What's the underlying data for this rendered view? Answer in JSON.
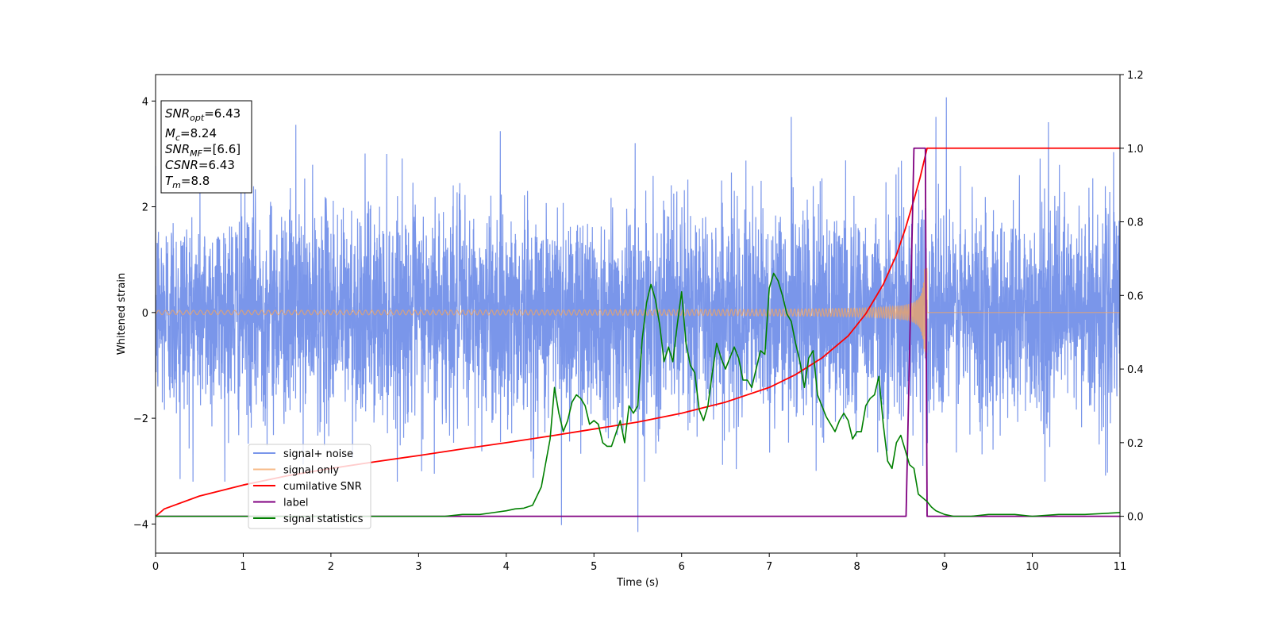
{
  "colors": {
    "signal_noise": "#4169e1",
    "signal_only": "#f4a460",
    "cumulative_snr": "#ff0000",
    "label": "#800080",
    "signal_statistics": "#008000"
  },
  "chart_data": {
    "type": "line",
    "xlabel": "Time (s)",
    "ylabel": "Whitened strain",
    "ylabel_right": "",
    "xlim": [
      0,
      11
    ],
    "ylim": [
      -4.55,
      4.5
    ],
    "ylim_right": [
      -0.1,
      1.2
    ],
    "xticks": [
      0,
      1,
      2,
      3,
      4,
      5,
      6,
      7,
      8,
      9,
      10,
      11
    ],
    "yticks": [
      -4,
      -2,
      0,
      2,
      4
    ],
    "yticks_right": [
      0.0,
      0.2,
      0.4,
      0.6,
      0.8,
      1.0,
      1.2
    ],
    "grid": false,
    "legend_position": "lower-left",
    "info_box": {
      "position": "top-left",
      "lines": [
        {
          "main": "SNR",
          "sub": "opt",
          "value": "=6.43"
        },
        {
          "main": "M",
          "sub": "c",
          "value": "=8.24"
        },
        {
          "main": "SNR",
          "sub": "MF",
          "value": "=[6.6]"
        },
        {
          "main": "CSNR",
          "sub": "",
          "value": "=6.43"
        },
        {
          "main": "T",
          "sub": "m",
          "value": "=8.8"
        }
      ]
    },
    "series": [
      {
        "name": "signal+ noise",
        "axis": "left",
        "kind": "noise",
        "std": 1.0,
        "envelope_min": -3.2,
        "envelope_max": 3.6,
        "extremes": [
          [
            8.9,
            3.7
          ],
          [
            9.02,
            4.07
          ],
          [
            4.63,
            -4.02
          ],
          [
            5.5,
            -4.15
          ],
          [
            1.6,
            3.55
          ],
          [
            7.25,
            3.7
          ],
          [
            0.28,
            -3.15
          ],
          [
            3.18,
            -3.05
          ]
        ]
      },
      {
        "name": "signal only",
        "axis": "left",
        "kind": "chirp",
        "merger_time": 8.8,
        "amplitude_start": 0.04,
        "amplitude_peak": 0.85,
        "post_merger": 0.0
      },
      {
        "name": "cumilative SNR",
        "axis": "right",
        "x": [
          0,
          0.1,
          0.5,
          1,
          1.5,
          2,
          2.5,
          3,
          3.5,
          4,
          4.5,
          5,
          5.5,
          6,
          6.5,
          7,
          7.3,
          7.6,
          7.9,
          8.1,
          8.3,
          8.45,
          8.55,
          8.65,
          8.72,
          8.78,
          8.8,
          11
        ],
        "y": [
          0.0,
          0.02,
          0.055,
          0.085,
          0.11,
          0.13,
          0.148,
          0.165,
          0.183,
          0.2,
          0.218,
          0.237,
          0.256,
          0.28,
          0.31,
          0.35,
          0.385,
          0.43,
          0.49,
          0.55,
          0.63,
          0.71,
          0.78,
          0.86,
          0.92,
          0.98,
          1.0,
          1.0
        ]
      },
      {
        "name": "label",
        "axis": "right",
        "x": [
          0,
          8.56,
          8.65,
          8.78,
          8.8,
          11
        ],
        "y": [
          0,
          0,
          1,
          1,
          0,
          0
        ]
      },
      {
        "name": "signal statistics",
        "axis": "right",
        "x": [
          0,
          0.5,
          1,
          1.5,
          2,
          2.5,
          3,
          3.3,
          3.5,
          3.7,
          3.85,
          4.0,
          4.1,
          4.2,
          4.3,
          4.4,
          4.5,
          4.55,
          4.6,
          4.65,
          4.7,
          4.75,
          4.8,
          4.85,
          4.9,
          4.95,
          5.0,
          5.05,
          5.1,
          5.15,
          5.2,
          5.3,
          5.35,
          5.4,
          5.45,
          5.5,
          5.55,
          5.6,
          5.65,
          5.7,
          5.75,
          5.8,
          5.85,
          5.9,
          5.95,
          6.0,
          6.05,
          6.1,
          6.15,
          6.2,
          6.25,
          6.3,
          6.35,
          6.4,
          6.45,
          6.5,
          6.55,
          6.6,
          6.65,
          6.7,
          6.75,
          6.8,
          6.85,
          6.9,
          6.95,
          7.0,
          7.05,
          7.1,
          7.15,
          7.2,
          7.25,
          7.3,
          7.35,
          7.4,
          7.45,
          7.5,
          7.55,
          7.6,
          7.65,
          7.7,
          7.75,
          7.8,
          7.85,
          7.9,
          7.95,
          8.0,
          8.05,
          8.1,
          8.15,
          8.2,
          8.25,
          8.3,
          8.35,
          8.4,
          8.45,
          8.5,
          8.55,
          8.6,
          8.65,
          8.7,
          8.75,
          8.8,
          8.85,
          8.9,
          8.95,
          9.0,
          9.1,
          9.2,
          9.3,
          9.5,
          9.8,
          10.0,
          10.3,
          10.6,
          11.0
        ],
        "y": [
          0.0,
          0.0,
          0.0,
          0.0,
          0.0,
          0.0,
          0.0,
          0.0,
          0.005,
          0.005,
          0.01,
          0.015,
          0.02,
          0.022,
          0.03,
          0.08,
          0.21,
          0.35,
          0.28,
          0.23,
          0.26,
          0.31,
          0.33,
          0.32,
          0.3,
          0.25,
          0.26,
          0.25,
          0.2,
          0.19,
          0.19,
          0.26,
          0.2,
          0.3,
          0.28,
          0.3,
          0.48,
          0.58,
          0.63,
          0.59,
          0.52,
          0.42,
          0.46,
          0.42,
          0.52,
          0.61,
          0.47,
          0.41,
          0.39,
          0.29,
          0.26,
          0.3,
          0.39,
          0.47,
          0.43,
          0.4,
          0.43,
          0.46,
          0.43,
          0.37,
          0.37,
          0.35,
          0.4,
          0.45,
          0.44,
          0.62,
          0.66,
          0.64,
          0.6,
          0.55,
          0.53,
          0.47,
          0.42,
          0.35,
          0.43,
          0.45,
          0.33,
          0.3,
          0.27,
          0.25,
          0.23,
          0.26,
          0.28,
          0.26,
          0.21,
          0.23,
          0.23,
          0.3,
          0.32,
          0.33,
          0.38,
          0.25,
          0.15,
          0.13,
          0.2,
          0.22,
          0.18,
          0.14,
          0.13,
          0.06,
          0.05,
          0.04,
          0.025,
          0.015,
          0.01,
          0.005,
          0.0,
          0.0,
          0.0,
          0.005,
          0.005,
          0.0,
          0.005,
          0.005,
          0.01
        ]
      }
    ]
  }
}
